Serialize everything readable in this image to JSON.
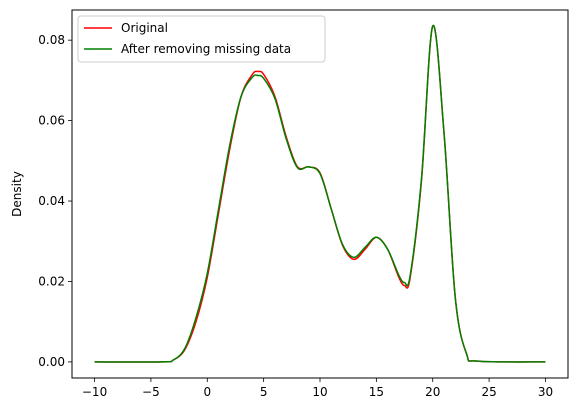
{
  "chart_data": {
    "type": "line",
    "title": "",
    "xlabel": "",
    "ylabel": "Density",
    "xlim": [
      -12,
      32
    ],
    "ylim": [
      -0.004,
      0.0875
    ],
    "xticks": [
      -10,
      -5,
      0,
      5,
      10,
      15,
      20,
      25,
      30
    ],
    "yticks": [
      0.0,
      0.02,
      0.04,
      0.06,
      0.08
    ],
    "ytick_labels": [
      "0.00",
      "0.02",
      "0.04",
      "0.06",
      "0.08"
    ],
    "grid": false,
    "legend_position": "top-left",
    "series": [
      {
        "name": "Original",
        "color": "#ff0000",
        "x": [
          -10,
          -4,
          -3,
          -2,
          -1,
          0,
          1,
          2,
          3,
          4,
          4.5,
          5,
          6,
          7,
          8,
          9,
          10,
          11,
          12,
          13,
          14,
          15,
          16,
          17,
          17.5,
          18,
          19,
          20,
          21,
          22,
          23,
          24,
          30
        ],
        "y": [
          0.0,
          0.0,
          0.0005,
          0.003,
          0.01,
          0.021,
          0.037,
          0.053,
          0.066,
          0.0715,
          0.0722,
          0.0715,
          0.066,
          0.056,
          0.0485,
          0.0485,
          0.047,
          0.038,
          0.029,
          0.0255,
          0.028,
          0.031,
          0.028,
          0.021,
          0.019,
          0.021,
          0.045,
          0.0835,
          0.057,
          0.016,
          0.002,
          0.0002,
          0.0
        ]
      },
      {
        "name": "After removing missing data",
        "color": "#008000",
        "x": [
          -10,
          -4,
          -3,
          -2,
          -1,
          0,
          1,
          2,
          3,
          4,
          4.5,
          5,
          6,
          7,
          8,
          9,
          10,
          11,
          12,
          13,
          14,
          15,
          16,
          17,
          17.5,
          18,
          19,
          20,
          21,
          22,
          23,
          24,
          30
        ],
        "y": [
          0.0,
          0.0,
          0.0005,
          0.0033,
          0.011,
          0.022,
          0.038,
          0.054,
          0.066,
          0.0708,
          0.0712,
          0.0705,
          0.0655,
          0.0555,
          0.0483,
          0.0485,
          0.0468,
          0.038,
          0.0292,
          0.026,
          0.0285,
          0.031,
          0.028,
          0.0215,
          0.0197,
          0.0215,
          0.0455,
          0.0835,
          0.057,
          0.016,
          0.002,
          0.0002,
          0.0
        ]
      }
    ]
  }
}
